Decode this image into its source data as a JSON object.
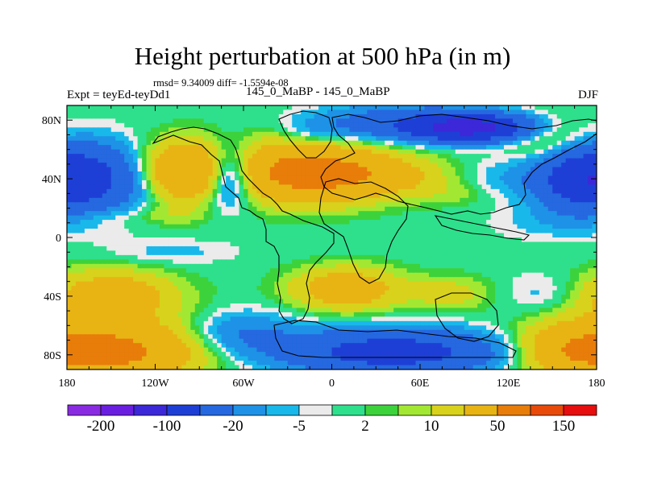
{
  "chart_data": {
    "type": "heatmap",
    "title": "Height perturbation at 500 hPa (in m)",
    "stats_text": "rmsd= 9.34009 diff= -1.5594e-08",
    "left_label": "Expt = teyEd-teyDd1",
    "center_label": "145_0_MaBP - 145_0_MaBP",
    "right_label": "DJF",
    "variable": "Height perturbation at 500 hPa",
    "units": "m",
    "rmsd": 9.34009,
    "diff": -1.5594e-08,
    "xlim": [
      -180,
      180
    ],
    "ylim": [
      -90,
      90
    ],
    "x_ticks": [
      {
        "value": -180,
        "label": "180"
      },
      {
        "value": -120,
        "label": "120W"
      },
      {
        "value": -60,
        "label": "60W"
      },
      {
        "value": 0,
        "label": "0"
      },
      {
        "value": 60,
        "label": "60E"
      },
      {
        "value": 120,
        "label": "120E"
      },
      {
        "value": 180,
        "label": "180"
      }
    ],
    "y_ticks": [
      {
        "value": 80,
        "label": "80N"
      },
      {
        "value": 40,
        "label": "40N"
      },
      {
        "value": 0,
        "label": "0"
      },
      {
        "value": -40,
        "label": "40S"
      },
      {
        "value": -80,
        "label": "80S"
      }
    ],
    "colorbar": {
      "colors": [
        "#8a2be2",
        "#6a1ee0",
        "#3c28d8",
        "#1e3fd6",
        "#2568e0",
        "#1e92e6",
        "#19b8ea",
        "#ebebeb",
        "#2ee08c",
        "#3cd23c",
        "#a2e832",
        "#d8d21c",
        "#e8b414",
        "#e87d0a",
        "#e84a0a",
        "#e60e0e"
      ],
      "labels": [
        {
          "boundary": 1,
          "text": "-200"
        },
        {
          "boundary": 3,
          "text": "-100"
        },
        {
          "boundary": 5,
          "text": "-20"
        },
        {
          "boundary": 7,
          "text": "-5"
        },
        {
          "boundary": 9,
          "text": "2"
        },
        {
          "boundary": 11,
          "text": "10"
        },
        {
          "boundary": 13,
          "text": "50"
        },
        {
          "boundary": 15,
          "text": "150"
        }
      ]
    },
    "anomaly_centers": [
      {
        "lon": -165,
        "lat": 40,
        "value": -55,
        "sx": 28,
        "sy": 16
      },
      {
        "lon": -100,
        "lat": 45,
        "value": 50,
        "sx": 22,
        "sy": 14
      },
      {
        "lon": -70,
        "lat": 42,
        "value": -45,
        "sx": 12,
        "sy": 14
      },
      {
        "lon": -10,
        "lat": 72,
        "value": -12,
        "sx": 18,
        "sy": 8
      },
      {
        "lon": -20,
        "lat": 45,
        "value": 60,
        "sx": 35,
        "sy": 14
      },
      {
        "lon": 30,
        "lat": 42,
        "value": 25,
        "sx": 35,
        "sy": 10
      },
      {
        "lon": 50,
        "lat": 78,
        "value": -40,
        "sx": 35,
        "sy": 8
      },
      {
        "lon": 95,
        "lat": 75,
        "value": -120,
        "sx": 25,
        "sy": 6
      },
      {
        "lon": 150,
        "lat": 65,
        "value": 15,
        "sx": 20,
        "sy": 10
      },
      {
        "lon": 170,
        "lat": 40,
        "value": -60,
        "sx": 20,
        "sy": 14
      },
      {
        "lon": 120,
        "lat": 40,
        "value": -10,
        "sx": 25,
        "sy": 10
      },
      {
        "lon": 85,
        "lat": 30,
        "value": 6,
        "sx": 20,
        "sy": 6
      },
      {
        "lon": -160,
        "lat": 15,
        "value": 8,
        "sx": 20,
        "sy": 6
      },
      {
        "lon": -110,
        "lat": 15,
        "value": 7,
        "sx": 18,
        "sy": 5
      },
      {
        "lon": -110,
        "lat": -10,
        "value": -7,
        "sx": 30,
        "sy": 6
      },
      {
        "lon": 145,
        "lat": 10,
        "value": -6,
        "sx": 25,
        "sy": 8
      },
      {
        "lon": -150,
        "lat": -40,
        "value": 35,
        "sx": 30,
        "sy": 12
      },
      {
        "lon": 10,
        "lat": -35,
        "value": 35,
        "sx": 25,
        "sy": 10
      },
      {
        "lon": 80,
        "lat": -38,
        "value": 14,
        "sx": 20,
        "sy": 8
      },
      {
        "lon": 145,
        "lat": -38,
        "value": -8,
        "sx": 20,
        "sy": 10
      },
      {
        "lon": -150,
        "lat": -78,
        "value": 60,
        "sx": 40,
        "sy": 14
      },
      {
        "lon": -60,
        "lat": -65,
        "value": -20,
        "sx": 25,
        "sy": 10
      },
      {
        "lon": 40,
        "lat": -78,
        "value": -70,
        "sx": 50,
        "sy": 10
      },
      {
        "lon": 160,
        "lat": -75,
        "value": 30,
        "sx": 25,
        "sy": 12
      }
    ]
  }
}
